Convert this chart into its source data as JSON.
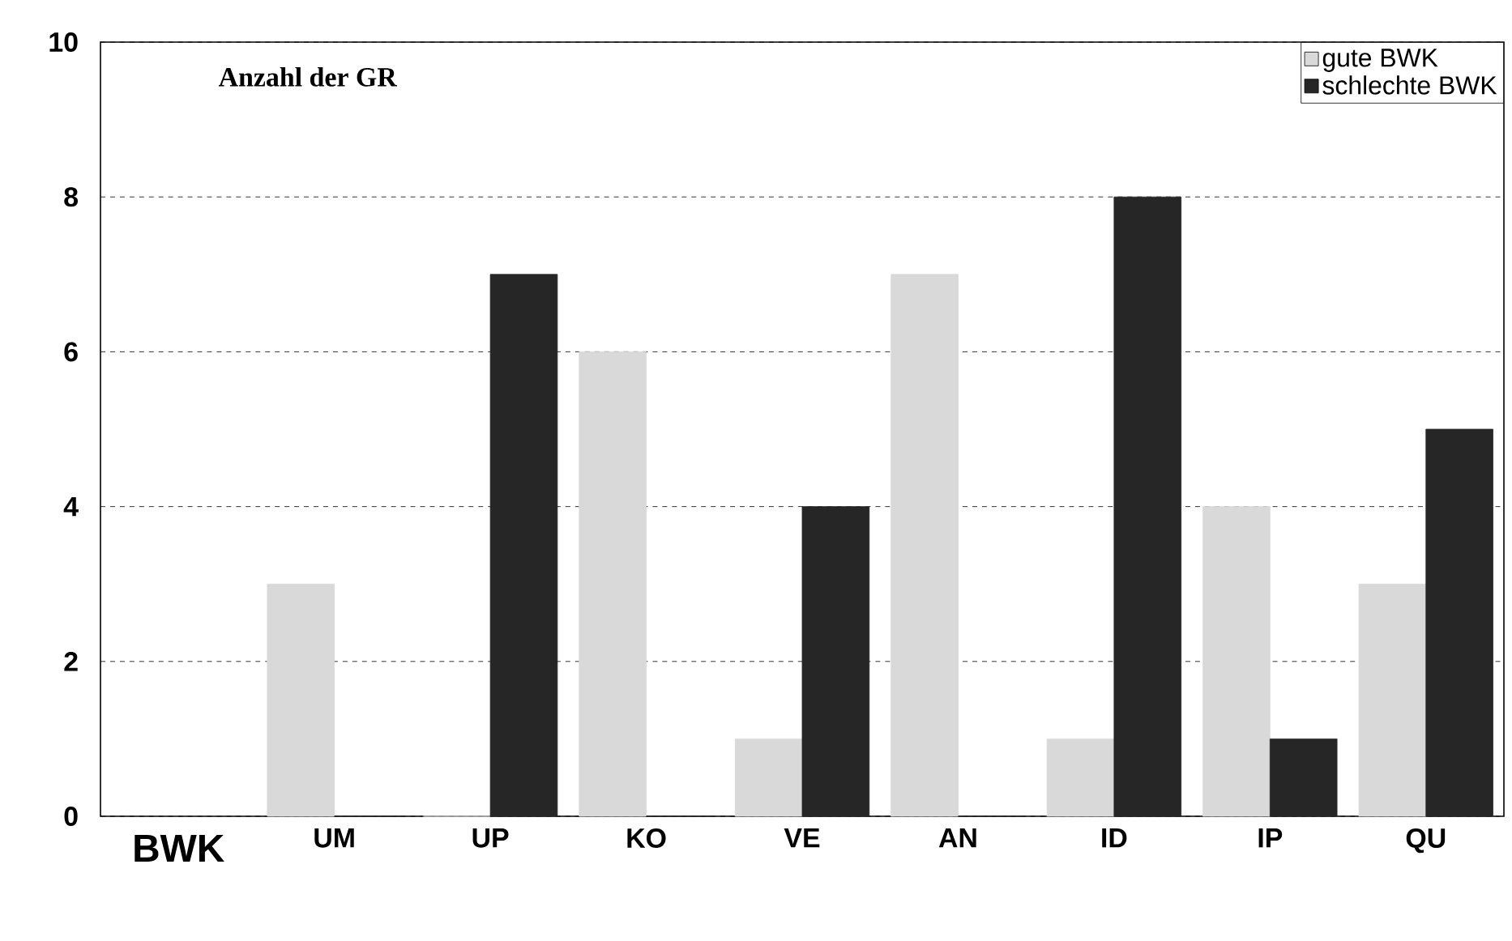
{
  "chart_data": {
    "type": "bar",
    "title": "Anzahl der GR",
    "xlabel": "BWK",
    "categories": [
      "UM",
      "UP",
      "KO",
      "VE",
      "AN",
      "ID",
      "IP",
      "QU"
    ],
    "series": [
      {
        "name": "gute BWK",
        "color": "#d9d9d9",
        "values": [
          3,
          0,
          6,
          1,
          7,
          1,
          4,
          3
        ]
      },
      {
        "name": "schlechte BWK",
        "color": "#262626",
        "values": [
          0,
          7,
          0,
          4,
          0,
          8,
          1,
          5
        ]
      }
    ],
    "ylim": [
      0,
      10
    ],
    "yticks": [
      0,
      2,
      4,
      6,
      8,
      10
    ],
    "grid": "y",
    "legend": "top right"
  }
}
